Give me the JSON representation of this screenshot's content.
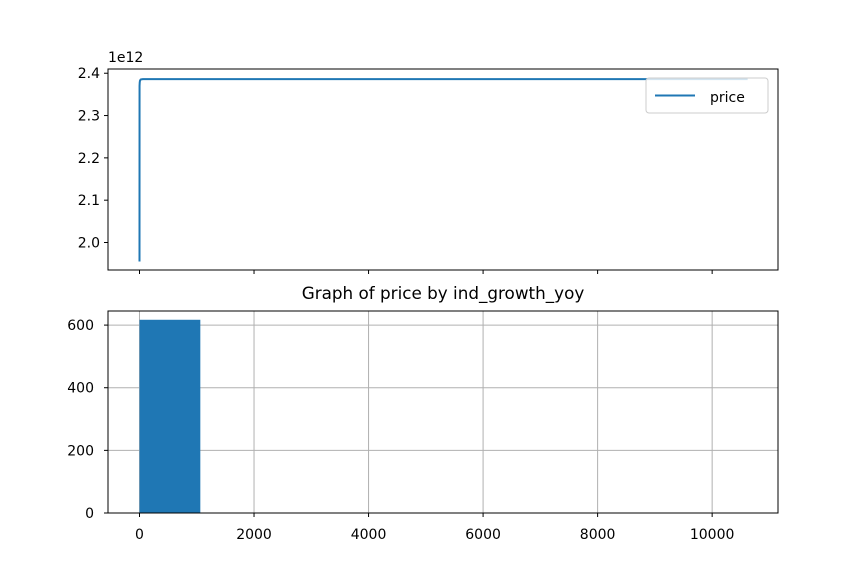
{
  "figure": {
    "background": "#ffffff"
  },
  "chart_data": [
    {
      "type": "line",
      "title": "",
      "xlabel": "",
      "ylabel": "",
      "offset_text": "1e12",
      "xlim": [
        -550,
        11150
      ],
      "ylim": [
        1935000000000.0,
        2410000000000.0
      ],
      "x_ticks": [
        0,
        2000,
        4000,
        6000,
        8000,
        10000
      ],
      "x_tick_labels_visible": false,
      "y_ticks": [
        2000000000000.0,
        2100000000000.0,
        2200000000000.0,
        2300000000000.0,
        2400000000000.0
      ],
      "y_tick_labels": [
        "2.0",
        "2.1",
        "2.2",
        "2.3",
        "2.4"
      ],
      "grid": false,
      "legend": {
        "position": "top-right",
        "entries": [
          "price"
        ]
      },
      "series": [
        {
          "name": "price",
          "color": "#1f77b4",
          "x": [
            0,
            1,
            4,
            8,
            15,
            20,
            30,
            60,
            200,
            1000,
            5000,
            10620
          ],
          "y": [
            1955000000000.0,
            2370000000000.0,
            2378000000000.0,
            2382000000000.0,
            2384000000000.0,
            2385000000000.0,
            2385500000000.0,
            2386000000000.0,
            2386000000000.0,
            2386000000000.0,
            2386000000000.0,
            2386000000000.0
          ]
        }
      ]
    },
    {
      "type": "bar",
      "title": "Graph of price by ind_growth_yoy",
      "xlabel": "",
      "ylabel": "",
      "xlim": [
        -550,
        11150
      ],
      "ylim": [
        0,
        645
      ],
      "x_ticks": [
        0,
        2000,
        4000,
        6000,
        8000,
        10000
      ],
      "x_tick_labels": [
        "0",
        "2000",
        "4000",
        "6000",
        "8000",
        "10000"
      ],
      "y_ticks": [
        0,
        200,
        400,
        600
      ],
      "y_tick_labels": [
        "0",
        "200",
        "400",
        "600"
      ],
      "grid": true,
      "bin_width": 1062,
      "bins": [
        0,
        1062,
        2124,
        3186,
        4248,
        5310,
        6372,
        7434,
        8496,
        9558
      ],
      "values": [
        617,
        0,
        0,
        0,
        0,
        0,
        0,
        0,
        0,
        1
      ],
      "color": "#1f77b4"
    }
  ]
}
